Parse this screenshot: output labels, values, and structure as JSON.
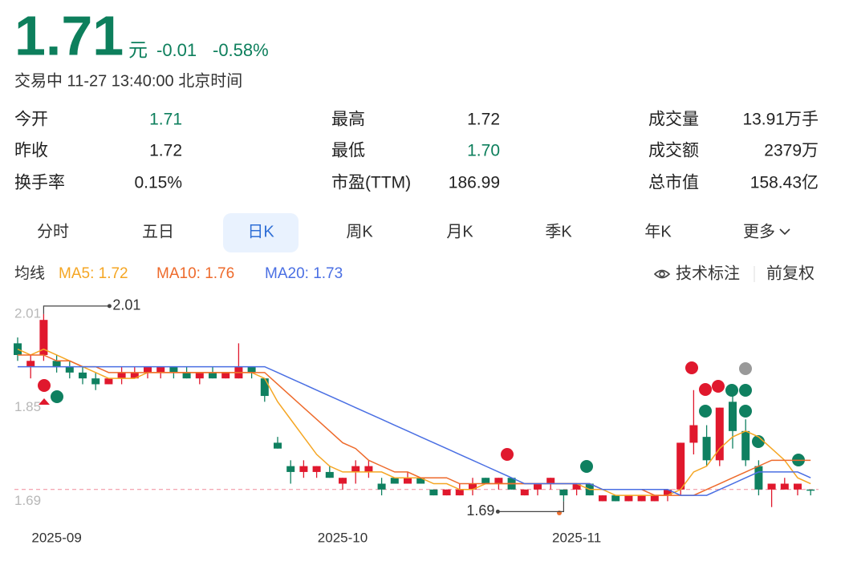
{
  "header": {
    "price": "1.71",
    "unit": "元",
    "change": "-0.01",
    "change_pct": "-0.58%",
    "status": "交易中 11-27 13:40:00 北京时间"
  },
  "stats": [
    [
      {
        "label": "今开",
        "value": "1.71",
        "color": "#0d7f5c"
      },
      {
        "label": "最高",
        "value": "1.72"
      },
      {
        "label": "成交量",
        "value": "13.91万手"
      }
    ],
    [
      {
        "label": "昨收",
        "value": "1.72"
      },
      {
        "label": "最低",
        "value": "1.70",
        "color": "#0d7f5c"
      },
      {
        "label": "成交额",
        "value": "2379万"
      }
    ],
    [
      {
        "label": "换手率",
        "value": "0.15%"
      },
      {
        "label": "市盈(TTM)",
        "value": "186.99"
      },
      {
        "label": "总市值",
        "value": "158.43亿"
      }
    ]
  ],
  "tabs": [
    "分时",
    "五日",
    "日K",
    "周K",
    "月K",
    "季K",
    "年K",
    "更多"
  ],
  "toolbar": {
    "annotate": "技术标注",
    "adjust": "前复权"
  },
  "chart_data": {
    "type": "candlestick",
    "legend_title": "均线",
    "ylim": [
      1.67,
      2.04
    ],
    "yticks": [
      2.01,
      1.85,
      1.69
    ],
    "up_color": "#e0182d",
    "down_color": "#0f8060",
    "price_line": {
      "value": 1.71,
      "color": "#f08a9a"
    },
    "annotations": [
      {
        "value": 2.01,
        "index": 2
      },
      {
        "value": 1.69,
        "index": 42
      }
    ],
    "categories": [
      null,
      null,
      null,
      "2025-09",
      null,
      null,
      null,
      null,
      null,
      null,
      null,
      null,
      null,
      null,
      null,
      null,
      null,
      null,
      null,
      null,
      null,
      null,
      null,
      null,
      null,
      "2025-10",
      null,
      null,
      null,
      null,
      null,
      null,
      null,
      null,
      null,
      null,
      null,
      null,
      null,
      null,
      null,
      null,
      null,
      "2025-11",
      null,
      null,
      null,
      null,
      null,
      null,
      null,
      null,
      null,
      null,
      null,
      null,
      null,
      null,
      null,
      null,
      null,
      null
    ],
    "open": [
      1.96,
      1.92,
      1.94,
      1.93,
      1.92,
      1.91,
      1.9,
      1.89,
      1.9,
      1.9,
      1.91,
      1.91,
      1.92,
      1.91,
      1.9,
      1.91,
      1.9,
      1.9,
      1.92,
      1.9,
      1.79,
      1.75,
      1.74,
      1.74,
      1.74,
      1.72,
      1.74,
      1.74,
      1.72,
      1.73,
      1.72,
      1.73,
      1.71,
      1.7,
      1.7,
      1.71,
      1.73,
      1.72,
      1.73,
      1.7,
      1.71,
      1.72,
      1.71,
      1.71,
      1.72,
      1.69,
      1.7,
      1.69,
      1.69,
      1.69,
      1.7,
      1.71,
      1.79,
      1.8,
      1.76,
      1.86,
      1.81,
      1.75,
      1.71,
      1.71,
      1.71,
      1.71
    ],
    "high": [
      1.97,
      1.94,
      2.01,
      1.94,
      1.93,
      1.92,
      1.91,
      1.9,
      1.92,
      1.92,
      1.92,
      1.92,
      1.92,
      1.92,
      1.91,
      1.92,
      1.91,
      1.96,
      1.92,
      1.9,
      1.8,
      1.76,
      1.76,
      1.75,
      1.75,
      1.73,
      1.76,
      1.76,
      1.73,
      1.73,
      1.74,
      1.73,
      1.71,
      1.71,
      1.72,
      1.73,
      1.73,
      1.73,
      1.73,
      1.71,
      1.72,
      1.73,
      1.71,
      1.72,
      1.72,
      1.7,
      1.7,
      1.7,
      1.7,
      1.7,
      1.71,
      1.79,
      1.88,
      1.82,
      1.85,
      1.88,
      1.83,
      1.76,
      1.72,
      1.73,
      1.72,
      1.71
    ],
    "low": [
      1.93,
      1.9,
      1.93,
      1.91,
      1.9,
      1.89,
      1.88,
      1.89,
      1.89,
      1.9,
      1.9,
      1.9,
      1.9,
      1.9,
      1.89,
      1.9,
      1.9,
      1.9,
      1.9,
      1.86,
      1.78,
      1.72,
      1.73,
      1.73,
      1.73,
      1.71,
      1.72,
      1.73,
      1.7,
      1.72,
      1.72,
      1.72,
      1.7,
      1.7,
      1.7,
      1.7,
      1.72,
      1.71,
      1.71,
      1.7,
      1.7,
      1.71,
      1.69,
      1.7,
      1.7,
      1.69,
      1.69,
      1.69,
      1.69,
      1.69,
      1.69,
      1.7,
      1.77,
      1.75,
      1.75,
      1.78,
      1.75,
      1.7,
      1.68,
      1.71,
      1.7,
      1.7
    ],
    "close": [
      1.94,
      1.93,
      2.0,
      1.92,
      1.91,
      1.9,
      1.89,
      1.9,
      1.91,
      1.91,
      1.92,
      1.92,
      1.91,
      1.9,
      1.91,
      1.9,
      1.91,
      1.92,
      1.91,
      1.87,
      1.78,
      1.74,
      1.75,
      1.75,
      1.73,
      1.73,
      1.75,
      1.75,
      1.71,
      1.72,
      1.73,
      1.72,
      1.7,
      1.71,
      1.71,
      1.72,
      1.72,
      1.73,
      1.71,
      1.71,
      1.72,
      1.73,
      1.7,
      1.72,
      1.7,
      1.7,
      1.69,
      1.7,
      1.7,
      1.7,
      1.71,
      1.79,
      1.82,
      1.76,
      1.85,
      1.81,
      1.76,
      1.71,
      1.72,
      1.72,
      1.72,
      1.71
    ],
    "series": [
      {
        "name": "MA5: 1.72",
        "color": "#f5a623",
        "values": [
          1.95,
          1.94,
          1.95,
          1.94,
          1.93,
          1.92,
          1.91,
          1.9,
          1.9,
          1.9,
          1.91,
          1.91,
          1.91,
          1.91,
          1.91,
          1.91,
          1.91,
          1.91,
          1.91,
          1.9,
          1.86,
          1.83,
          1.8,
          1.77,
          1.75,
          1.74,
          1.74,
          1.74,
          1.74,
          1.73,
          1.73,
          1.73,
          1.72,
          1.72,
          1.71,
          1.71,
          1.72,
          1.72,
          1.72,
          1.72,
          1.72,
          1.72,
          1.72,
          1.72,
          1.71,
          1.71,
          1.7,
          1.7,
          1.7,
          1.7,
          1.7,
          1.71,
          1.74,
          1.75,
          1.78,
          1.8,
          1.81,
          1.8,
          1.78,
          1.76,
          1.73,
          1.72
        ]
      },
      {
        "name": "MA10: 1.76",
        "color": "#ee6a2b",
        "values": [
          1.94,
          1.94,
          1.94,
          1.93,
          1.93,
          1.92,
          1.92,
          1.91,
          1.91,
          1.91,
          1.91,
          1.91,
          1.91,
          1.91,
          1.91,
          1.91,
          1.91,
          1.91,
          1.91,
          1.91,
          1.89,
          1.87,
          1.85,
          1.83,
          1.81,
          1.79,
          1.78,
          1.76,
          1.75,
          1.74,
          1.74,
          1.73,
          1.73,
          1.73,
          1.72,
          1.72,
          1.72,
          1.72,
          1.72,
          1.72,
          1.72,
          1.72,
          1.72,
          1.72,
          1.72,
          1.71,
          1.71,
          1.71,
          1.71,
          1.7,
          1.7,
          1.7,
          1.7,
          1.71,
          1.72,
          1.73,
          1.74,
          1.75,
          1.76,
          1.76,
          1.76,
          1.76
        ]
      },
      {
        "name": "MA20: 1.73",
        "color": "#4a6fe3",
        "values": [
          1.92,
          1.92,
          1.92,
          1.92,
          1.92,
          1.92,
          1.92,
          1.92,
          1.92,
          1.92,
          1.92,
          1.92,
          1.92,
          1.92,
          1.92,
          1.92,
          1.92,
          1.92,
          1.92,
          1.92,
          1.91,
          1.9,
          1.89,
          1.88,
          1.87,
          1.86,
          1.85,
          1.84,
          1.83,
          1.82,
          1.81,
          1.8,
          1.79,
          1.78,
          1.77,
          1.76,
          1.75,
          1.74,
          1.73,
          1.72,
          1.72,
          1.72,
          1.72,
          1.72,
          1.72,
          1.71,
          1.71,
          1.71,
          1.71,
          1.71,
          1.71,
          1.7,
          1.7,
          1.7,
          1.71,
          1.72,
          1.73,
          1.74,
          1.74,
          1.74,
          1.74,
          1.73
        ]
      }
    ]
  }
}
